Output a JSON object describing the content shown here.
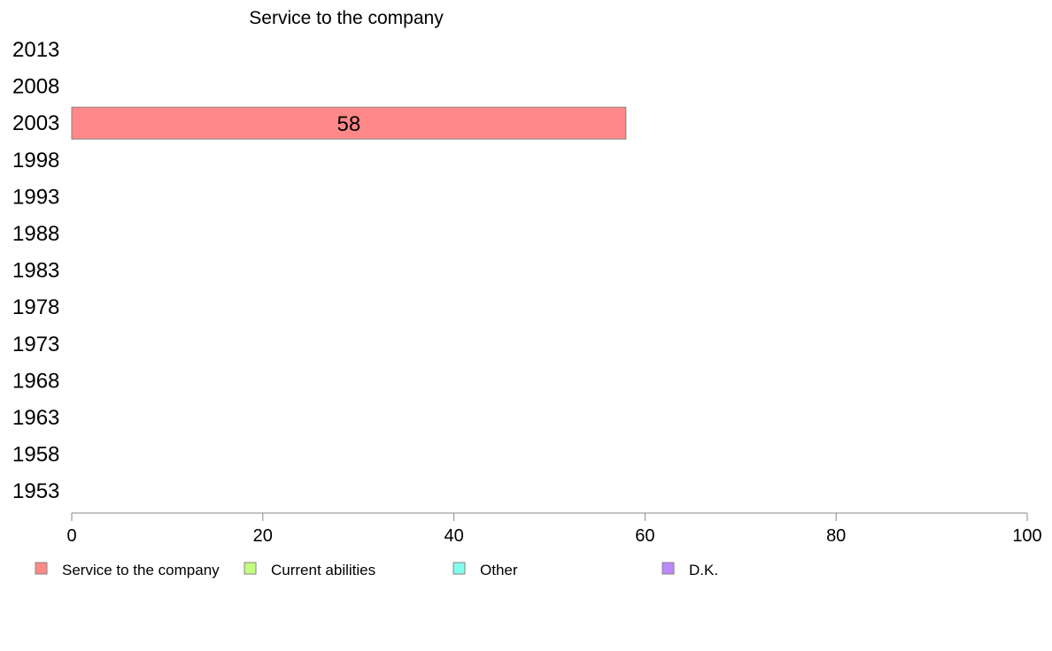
{
  "chart_data": {
    "type": "bar",
    "orientation": "horizontal",
    "title": "Service to the company",
    "categories": [
      "2013",
      "2008",
      "2003",
      "1998",
      "1993",
      "1988",
      "1983",
      "1978",
      "1973",
      "1968",
      "1963",
      "1958",
      "1953"
    ],
    "series": [
      {
        "name": "Service to the company",
        "color": "#ff8888",
        "values": [
          null,
          null,
          58,
          null,
          null,
          null,
          null,
          null,
          null,
          null,
          null,
          null,
          null
        ]
      },
      {
        "name": "Current abilities",
        "color": "#c4ff80",
        "values": [
          null,
          null,
          null,
          null,
          null,
          null,
          null,
          null,
          null,
          null,
          null,
          null,
          null
        ]
      },
      {
        "name": "Other",
        "color": "#80ffee",
        "values": [
          null,
          null,
          null,
          null,
          null,
          null,
          null,
          null,
          null,
          null,
          null,
          null,
          null
        ]
      },
      {
        "name": "D.K.",
        "color": "#bb88ff",
        "values": [
          null,
          null,
          null,
          null,
          null,
          null,
          null,
          null,
          null,
          null,
          null,
          null,
          null
        ]
      }
    ],
    "data_labels": {
      "2003": "58"
    },
    "xlim": [
      0,
      100
    ],
    "xticks": [
      0,
      20,
      40,
      60,
      80,
      100
    ],
    "grid": false,
    "legend_position": "bottom-left"
  }
}
